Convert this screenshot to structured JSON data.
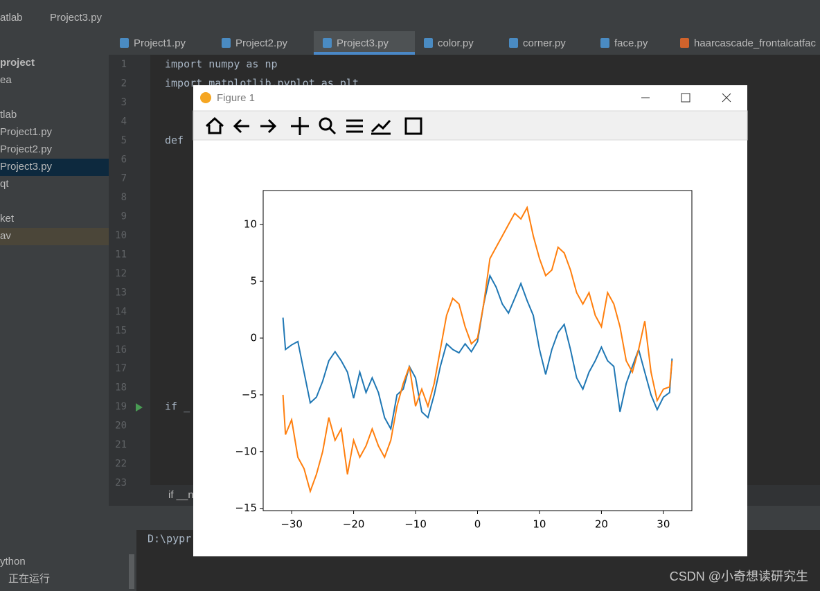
{
  "breadcrumb": [
    "atlab",
    "Project3.py"
  ],
  "tabs": [
    "Project1.py",
    "Project2.py",
    "Project3.py",
    "color.py",
    "corner.py",
    "face.py",
    "haarcascade_frontalcatfac"
  ],
  "sidebar": [
    "project",
    "ea",
    "tlab",
    "Project1.py",
    "Project2.py",
    "Project3.py",
    "qt",
    "ket",
    "av"
  ],
  "line_numbers": [
    1,
    2,
    3,
    4,
    5,
    6,
    7,
    8,
    9,
    10,
    11,
    12,
    13,
    14,
    15,
    16,
    17,
    18,
    19,
    20,
    21,
    22,
    23
  ],
  "code_lines": [
    "import numpy as np",
    "import matplotlib.pyplot as plt",
    null,
    null,
    "def ",
    null,
    null,
    null,
    null,
    null,
    null,
    null,
    null,
    null,
    null,
    null,
    null,
    null,
    "if _",
    null,
    null,
    null,
    null
  ],
  "editor_breadcrumb": "if __n",
  "run_output": "D:\\pypr",
  "run_panel": [
    "ython",
    "正在运行"
  ],
  "watermark": "CSDN @小奇想读研究生",
  "window_title": "Figure 1",
  "chart_data": {
    "type": "line",
    "x": [
      -31.4,
      -31,
      -30,
      -29,
      -28,
      -27,
      -26,
      -25,
      -24,
      -23,
      -22,
      -21,
      -20,
      -19,
      -18,
      -17,
      -16,
      -15,
      -14,
      -13,
      -12,
      -11,
      -10,
      -9,
      -8,
      -7,
      -6,
      -5,
      -4,
      -3,
      -2,
      -1,
      0,
      1,
      2,
      3,
      4,
      5,
      6,
      7,
      8,
      9,
      10,
      11,
      12,
      13,
      14,
      15,
      16,
      17,
      18,
      19,
      20,
      21,
      22,
      23,
      24,
      25,
      26,
      27,
      28,
      29,
      30,
      31,
      31.4
    ],
    "series": [
      {
        "color": "#1f77b4",
        "values": [
          1.8,
          -1,
          -0.6,
          -0.3,
          -3,
          -5.7,
          -5.2,
          -3.8,
          -2,
          -1.2,
          -2,
          -3,
          -5.3,
          -3,
          -4.8,
          -3.5,
          -4.8,
          -7,
          -8,
          -5,
          -4.5,
          -2.5,
          -3.5,
          -6.5,
          -7,
          -5,
          -2.5,
          -0.5,
          -1,
          -1.3,
          -0.5,
          -1.2,
          -0.3,
          3,
          5.5,
          4.5,
          3,
          2.2,
          3.5,
          4.8,
          3.3,
          2,
          -1,
          -3.2,
          -1,
          0.5,
          1.2,
          -1,
          -3.5,
          -4.5,
          -3,
          -2,
          -0.8,
          -2,
          -2.5,
          -6.5,
          -4,
          -2.5,
          -1,
          -3,
          -5,
          -6.3,
          -5.2,
          -4.8,
          -1.8
        ]
      },
      {
        "color": "#ff7f0e",
        "values": [
          -5,
          -8.5,
          -7.2,
          -10.5,
          -11.5,
          -13.5,
          -12,
          -10,
          -7,
          -9,
          -8,
          -12,
          -9,
          -10.5,
          -9.5,
          -8,
          -9.5,
          -10.5,
          -9,
          -6,
          -4,
          -2.5,
          -6,
          -4.5,
          -6,
          -4,
          -1,
          2,
          3.5,
          3,
          1,
          -0.5,
          0,
          3,
          7,
          8,
          9,
          10,
          11,
          10.5,
          11.5,
          9,
          7,
          5.5,
          6,
          8,
          7.5,
          6,
          4,
          3,
          4,
          2,
          1,
          4,
          3,
          1,
          -2,
          -3,
          -1,
          1.5,
          -3,
          -5.5,
          -4.5,
          -4.3,
          -2
        ]
      }
    ],
    "xlim": [
      -34.6,
      34.6
    ],
    "xticks": [
      {
        "value": -30,
        "label": "−30"
      },
      {
        "value": -20,
        "label": "−20"
      },
      {
        "value": -10,
        "label": "−10"
      },
      0,
      10,
      20,
      30
    ],
    "ylim": [
      -15.2,
      13
    ],
    "yticks": [
      {
        "value": -15,
        "label": "−15"
      },
      {
        "value": -10,
        "label": "−10"
      },
      {
        "value": -5,
        "label": "−5"
      },
      0,
      5,
      10
    ]
  }
}
